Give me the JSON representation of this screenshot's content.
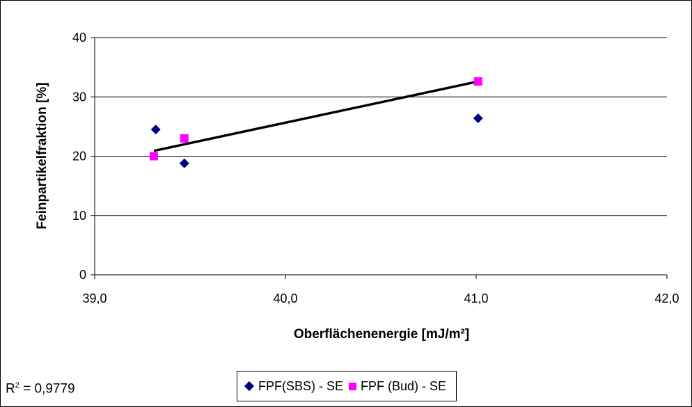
{
  "chart_data": {
    "type": "scatter",
    "xlabel": "Oberflächenenergie [mJ/m²]",
    "ylabel": "Feinpartikelfraktion [%]",
    "xlim": [
      39.0,
      42.0
    ],
    "ylim": [
      0,
      40
    ],
    "x_ticks": [
      "39,0",
      "40,0",
      "41,0",
      "42,0"
    ],
    "y_ticks": [
      "0",
      "10",
      "20",
      "30",
      "40"
    ],
    "grid": "horizontal",
    "legend_position": "bottom",
    "series": [
      {
        "name": "FPF(SBS) - SE",
        "marker": "diamond",
        "color": "#000080",
        "points": [
          [
            39.32,
            24.5
          ],
          [
            39.47,
            18.8
          ],
          [
            41.01,
            26.4
          ]
        ]
      },
      {
        "name": "FPF (Bud) - SE",
        "marker": "square",
        "color": "#ff00ff",
        "points": [
          [
            39.31,
            20.0
          ],
          [
            39.47,
            23.0
          ],
          [
            41.01,
            32.6
          ]
        ]
      }
    ],
    "trendline": {
      "color": "#000000",
      "points": [
        [
          39.31,
          20.9
        ],
        [
          41.01,
          32.6
        ]
      ]
    },
    "annotation": {
      "prefix": "R",
      "superscript": "2",
      "value": " = 0,9779"
    }
  }
}
